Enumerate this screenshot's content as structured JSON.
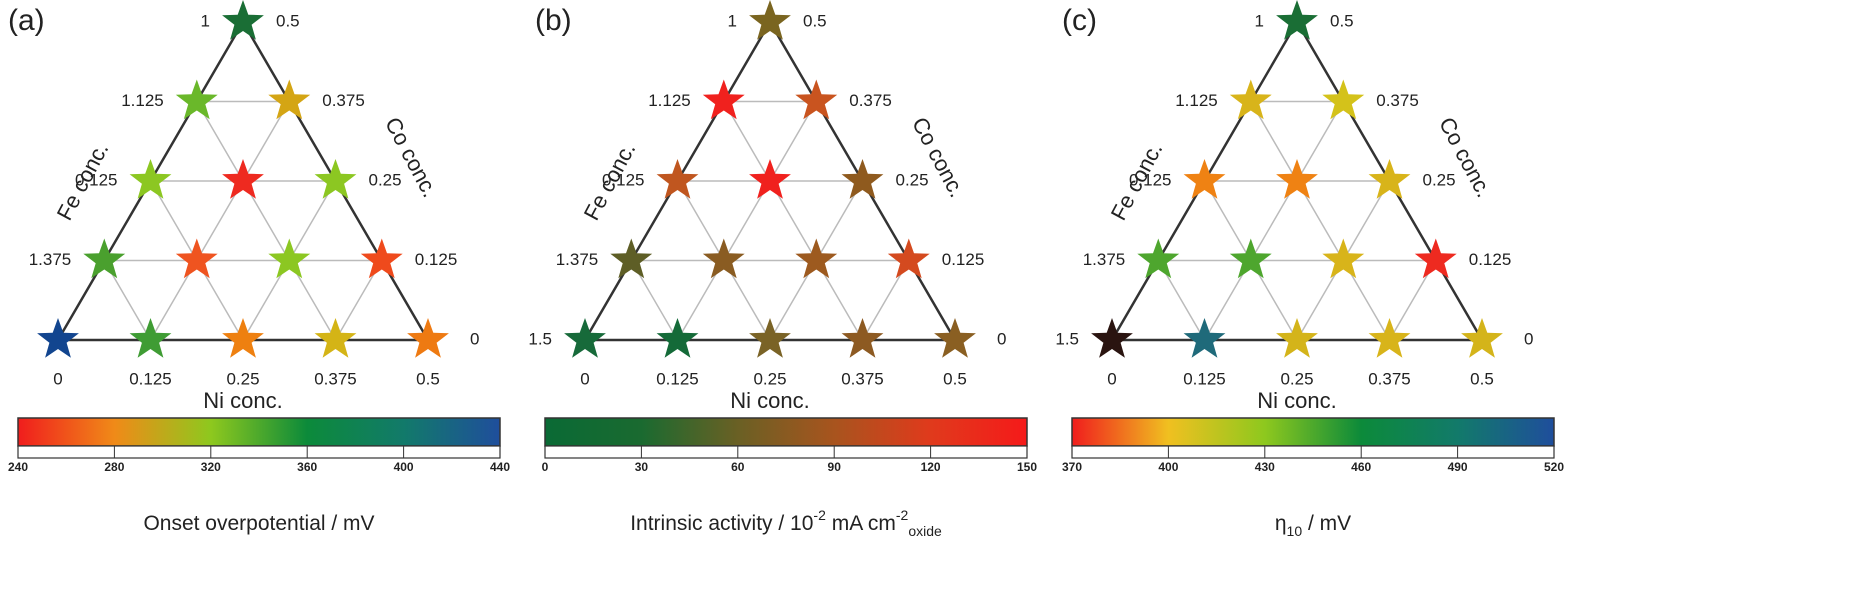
{
  "panels": [
    {
      "label": "(a)",
      "fe_axis": "Fe conc.",
      "co_axis": "Co conc.",
      "ni_axis": "Ni conc.",
      "fe_ticks": [
        "1",
        "1.125",
        "0.125",
        "1.375",
        null
      ],
      "co_ticks": [
        "0.5",
        "0.375",
        "0.25",
        "0.125",
        "0"
      ],
      "ni_ticks": [
        "0",
        "0.125",
        "0.25",
        "0.375",
        "0.5"
      ],
      "stars": [
        [
          "#1a6e35"
        ],
        [
          "#6ab82a",
          "#d4a514"
        ],
        [
          "#8cc722",
          "#ee2a20",
          "#8cc722"
        ],
        [
          "#4aa02e",
          "#ef5420",
          "#8cc722",
          "#ef4a1c"
        ],
        [
          "#12458f",
          "#3f9c34",
          "#ee8010",
          "#d4b416",
          "#ee7a12"
        ]
      ],
      "colorbar": {
        "colors": [
          "#f01d1d",
          "#f08a18",
          "#8ec81e",
          "#0c8a3a",
          "#127a6a",
          "#1f4e9c"
        ],
        "ticks": [
          240,
          280,
          320,
          360,
          400,
          440
        ],
        "title_parts": [
          {
            "text": "Onset overpotential / mV"
          }
        ]
      }
    },
    {
      "label": "(b)",
      "fe_axis": "Fe conc.",
      "co_axis": "Co conc.",
      "ni_axis": "Ni conc.",
      "fe_ticks": [
        "1",
        "1.125",
        "0.125",
        "1.375",
        "1.5"
      ],
      "co_ticks": [
        "0.5",
        "0.375",
        "0.25",
        "0.125",
        "0"
      ],
      "ni_ticks": [
        "0",
        "0.125",
        "0.25",
        "0.375",
        "0.5"
      ],
      "stars": [
        [
          "#7a6520"
        ],
        [
          "#f0211e",
          "#c9541f"
        ],
        [
          "#c0561f",
          "#f0211e",
          "#8f5a1e"
        ],
        [
          "#5e5e26",
          "#8a5c22",
          "#9d5a1f",
          "#d44a1f"
        ],
        [
          "#176a3a",
          "#146a38",
          "#7a6326",
          "#8d5a22",
          "#8a5f22"
        ]
      ],
      "colorbar": {
        "colors": [
          "#0a6a35",
          "#1a6a30",
          "#6a6024",
          "#a8541e",
          "#e03a1c",
          "#f51a1a"
        ],
        "ticks": [
          0,
          30,
          60,
          90,
          120,
          150
        ],
        "title_parts": [
          {
            "text": "Intrinsic activity / 10"
          },
          {
            "text": "-2",
            "sup": true
          },
          {
            "text": " mA cm"
          },
          {
            "text": "-2",
            "sup": true
          },
          {
            "text": "oxide",
            "sub": true
          }
        ]
      }
    },
    {
      "label": "(c)",
      "fe_axis": "Fe conc.",
      "co_axis": "Co conc.",
      "ni_axis": "Ni conc.",
      "fe_ticks": [
        "1",
        "1.125",
        "0.125",
        "1.375",
        "1.5"
      ],
      "co_ticks": [
        "0.5",
        "0.375",
        "0.25",
        "0.125",
        "0"
      ],
      "ni_ticks": [
        "0",
        "0.125",
        "0.25",
        "0.375",
        "0.5"
      ],
      "stars": [
        [
          "#1a6e35"
        ],
        [
          "#d8b41a",
          "#d4c21a"
        ],
        [
          "#ef8213",
          "#ef8213",
          "#d8b41a"
        ],
        [
          "#4ea62e",
          "#4ea62e",
          "#d8b41a",
          "#ee2a20"
        ],
        [
          "#2a1410",
          "#1f6a7a",
          "#d4b41a",
          "#d8b41a",
          "#d4b41a"
        ]
      ],
      "colorbar": {
        "colors": [
          "#f01d1d",
          "#f0c020",
          "#8ec81e",
          "#0c8a3a",
          "#127a6a",
          "#1f4e9c"
        ],
        "ticks": [
          370,
          400,
          430,
          460,
          490,
          520
        ],
        "title_parts": [
          {
            "text": "η"
          },
          {
            "text": "10",
            "sub": true
          },
          {
            "text": " / mV"
          }
        ]
      }
    }
  ]
}
